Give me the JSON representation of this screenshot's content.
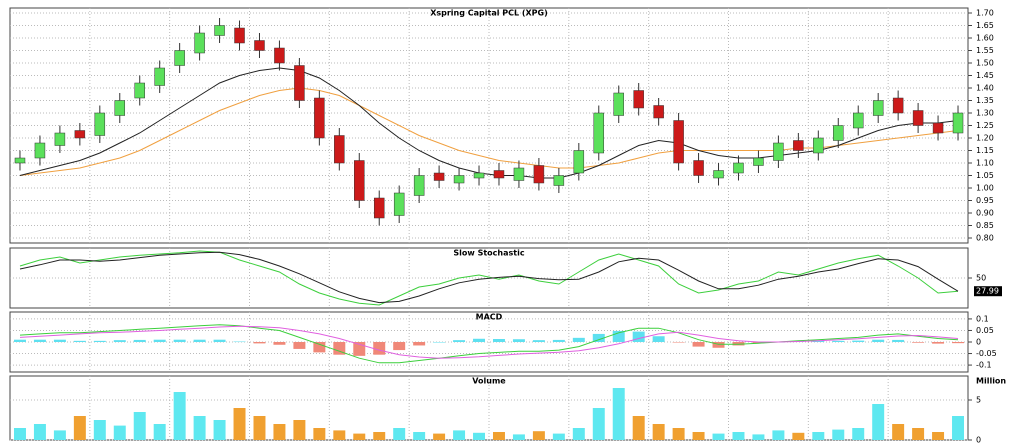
{
  "chart_data": [
    {
      "type": "candlestick",
      "title": "Xspring Capital PCL (XPG)",
      "grid": true,
      "up_color": "#5be05b",
      "down_color": "#cc1a1a",
      "open": [
        1.1,
        1.12,
        1.17,
        1.23,
        1.21,
        1.29,
        1.36,
        1.41,
        1.49,
        1.54,
        1.61,
        1.64,
        1.59,
        1.56,
        1.49,
        1.36,
        1.21,
        1.11,
        0.96,
        0.89,
        0.97,
        1.06,
        1.02,
        1.04,
        1.07,
        1.03,
        1.09,
        1.01,
        1.06,
        1.14,
        1.29,
        1.39,
        1.33,
        1.27,
        1.11,
        1.04,
        1.06,
        1.09,
        1.11,
        1.19,
        1.14,
        1.19,
        1.24,
        1.29,
        1.36,
        1.31,
        1.26,
        1.22
      ],
      "high": [
        1.15,
        1.21,
        1.25,
        1.26,
        1.33,
        1.38,
        1.45,
        1.51,
        1.58,
        1.65,
        1.68,
        1.67,
        1.62,
        1.59,
        1.52,
        1.39,
        1.24,
        1.14,
        0.99,
        1.01,
        1.08,
        1.09,
        1.08,
        1.09,
        1.1,
        1.11,
        1.12,
        1.08,
        1.18,
        1.33,
        1.41,
        1.42,
        1.36,
        1.3,
        1.14,
        1.1,
        1.13,
        1.15,
        1.21,
        1.22,
        1.23,
        1.28,
        1.33,
        1.38,
        1.39,
        1.34,
        1.29,
        1.33
      ],
      "low": [
        1.07,
        1.09,
        1.14,
        1.17,
        1.18,
        1.26,
        1.33,
        1.38,
        1.46,
        1.51,
        1.58,
        1.55,
        1.52,
        1.47,
        1.32,
        1.17,
        1.07,
        0.92,
        0.85,
        0.86,
        0.94,
        1.0,
        0.99,
        1.01,
        1.01,
        1.0,
        0.99,
        0.98,
        1.03,
        1.11,
        1.26,
        1.29,
        1.25,
        1.07,
        1.02,
        1.01,
        1.03,
        1.06,
        1.08,
        1.12,
        1.11,
        1.16,
        1.21,
        1.26,
        1.27,
        1.22,
        1.19,
        1.19
      ],
      "close": [
        1.12,
        1.18,
        1.22,
        1.2,
        1.3,
        1.35,
        1.42,
        1.48,
        1.55,
        1.62,
        1.65,
        1.58,
        1.55,
        1.5,
        1.35,
        1.2,
        1.1,
        0.95,
        0.88,
        0.98,
        1.05,
        1.03,
        1.05,
        1.06,
        1.04,
        1.08,
        1.02,
        1.05,
        1.15,
        1.3,
        1.38,
        1.32,
        1.28,
        1.1,
        1.05,
        1.07,
        1.1,
        1.12,
        1.18,
        1.15,
        1.2,
        1.25,
        1.3,
        1.35,
        1.3,
        1.25,
        1.22,
        1.3
      ],
      "overlays": [
        {
          "color": "#f0a040",
          "values": [
            1.05,
            1.06,
            1.07,
            1.08,
            1.1,
            1.12,
            1.15,
            1.19,
            1.23,
            1.27,
            1.31,
            1.34,
            1.37,
            1.39,
            1.4,
            1.39,
            1.37,
            1.33,
            1.29,
            1.25,
            1.21,
            1.18,
            1.15,
            1.13,
            1.11,
            1.1,
            1.09,
            1.08,
            1.08,
            1.09,
            1.1,
            1.12,
            1.14,
            1.15,
            1.15,
            1.15,
            1.15,
            1.15,
            1.15,
            1.16,
            1.16,
            1.17,
            1.18,
            1.19,
            1.2,
            1.21,
            1.22,
            1.23
          ]
        },
        {
          "color": "#222222",
          "values": [
            1.05,
            1.07,
            1.09,
            1.11,
            1.14,
            1.18,
            1.22,
            1.27,
            1.32,
            1.37,
            1.42,
            1.45,
            1.47,
            1.48,
            1.47,
            1.44,
            1.39,
            1.33,
            1.26,
            1.2,
            1.15,
            1.11,
            1.08,
            1.06,
            1.05,
            1.05,
            1.04,
            1.04,
            1.06,
            1.09,
            1.13,
            1.17,
            1.19,
            1.18,
            1.15,
            1.13,
            1.12,
            1.12,
            1.13,
            1.14,
            1.15,
            1.17,
            1.2,
            1.23,
            1.25,
            1.26,
            1.26,
            1.27
          ]
        }
      ],
      "ylim": [
        0.78,
        1.72
      ],
      "yticks": [
        {
          "value": 0.8,
          "label": "0.80"
        },
        0.85,
        {
          "value": 0.9,
          "label": "0.90"
        },
        0.95,
        {
          "value": 1.0,
          "label": "1.00"
        },
        1.05,
        {
          "value": 1.1,
          "label": "1.10"
        },
        1.15,
        {
          "value": 1.2,
          "label": "1.20"
        },
        1.25,
        {
          "value": 1.3,
          "label": "1.30"
        },
        1.35,
        {
          "value": 1.4,
          "label": "1.40"
        },
        1.45,
        {
          "value": 1.5,
          "label": "1.50"
        },
        1.55,
        {
          "value": 1.6,
          "label": "1.60"
        },
        1.65,
        {
          "value": 1.7,
          "label": "1.70"
        }
      ]
    },
    {
      "type": "line",
      "title": "Slow Stochastic",
      "grid": true,
      "series": [
        {
          "color": "#3ccf3c",
          "values": [
            70,
            80,
            85,
            75,
            80,
            85,
            88,
            90,
            92,
            95,
            93,
            80,
            70,
            60,
            40,
            25,
            15,
            8,
            5,
            20,
            35,
            40,
            50,
            55,
            48,
            55,
            45,
            40,
            60,
            80,
            90,
            80,
            70,
            40,
            25,
            30,
            40,
            45,
            60,
            55,
            65,
            75,
            82,
            88,
            70,
            50,
            25,
            28
          ]
        },
        {
          "color": "#222222",
          "values": [
            65,
            72,
            80,
            80,
            78,
            80,
            84,
            88,
            90,
            92,
            93,
            89,
            81,
            70,
            57,
            42,
            27,
            16,
            9,
            11,
            20,
            32,
            42,
            48,
            51,
            53,
            49,
            47,
            48,
            60,
            77,
            83,
            80,
            63,
            45,
            32,
            32,
            38,
            48,
            53,
            60,
            65,
            74,
            82,
            80,
            69,
            48,
            27.99
          ]
        }
      ],
      "ylim": [
        0,
        100
      ],
      "yticks": [
        50
      ]
    },
    {
      "type": "combo",
      "title": "MACD",
      "grid": true,
      "series": [
        {
          "color": "#3ccf3c",
          "values": [
            0.03,
            0.035,
            0.04,
            0.04,
            0.045,
            0.05,
            0.055,
            0.06,
            0.065,
            0.07,
            0.075,
            0.07,
            0.06,
            0.05,
            0.02,
            -0.01,
            -0.04,
            -0.07,
            -0.09,
            -0.09,
            -0.08,
            -0.07,
            -0.06,
            -0.05,
            -0.045,
            -0.04,
            -0.04,
            -0.035,
            -0.02,
            0.01,
            0.04,
            0.06,
            0.06,
            0.04,
            0.01,
            -0.01,
            -0.01,
            -0.005,
            0,
            0.005,
            0.01,
            0.015,
            0.02,
            0.03,
            0.035,
            0.025,
            0.015,
            0.01
          ]
        },
        {
          "color": "#e060e0",
          "values": [
            0.02,
            0.025,
            0.03,
            0.035,
            0.04,
            0.042,
            0.046,
            0.05,
            0.055,
            0.06,
            0.065,
            0.068,
            0.066,
            0.062,
            0.05,
            0.035,
            0.015,
            -0.01,
            -0.035,
            -0.055,
            -0.065,
            -0.07,
            -0.068,
            -0.064,
            -0.058,
            -0.052,
            -0.048,
            -0.044,
            -0.038,
            -0.025,
            -0.008,
            0.015,
            0.035,
            0.042,
            0.03,
            0.015,
            0.005,
            0,
            0,
            0.002,
            0.005,
            0.01,
            0.014,
            0.02,
            0.026,
            0.028,
            0.022,
            0.015
          ]
        }
      ],
      "histogram": {
        "up_color": "#5ee0f0",
        "down_color": "#f08878",
        "values": [
          0.01,
          0.01,
          0.01,
          0.005,
          0.005,
          0.008,
          0.009,
          0.01,
          0.01,
          0.01,
          0.01,
          0.002,
          -0.006,
          -0.012,
          -0.03,
          -0.045,
          -0.055,
          -0.06,
          -0.055,
          -0.035,
          -0.015,
          0,
          0.008,
          0.014,
          0.013,
          0.012,
          0.008,
          0.009,
          0.018,
          0.035,
          0.048,
          0.045,
          0.025,
          -0.002,
          -0.02,
          -0.025,
          -0.015,
          -0.005,
          0,
          0.003,
          0.005,
          0.005,
          0.006,
          0.01,
          0.009,
          -0.003,
          -0.007,
          -0.005
        ]
      },
      "ylim": [
        -0.13,
        0.13
      ],
      "yticks": [
        0.1,
        0.05,
        0,
        -0.05,
        -0.1
      ]
    },
    {
      "type": "bar",
      "title": "Volume",
      "y_label": "Million",
      "grid": true,
      "up_color": "#5ee8f0",
      "down_color": "#f0a030",
      "values": [
        1.5,
        2,
        1.2,
        3,
        2.5,
        1.8,
        3.5,
        2,
        6,
        3,
        2.5,
        4,
        3,
        2,
        2.5,
        1.5,
        1.2,
        0.8,
        1,
        1.5,
        1,
        0.8,
        1.2,
        0.9,
        1,
        0.7,
        1.1,
        0.8,
        1.5,
        4,
        6.5,
        3,
        2,
        1.5,
        1,
        0.8,
        1,
        0.7,
        1.2,
        0.9,
        1,
        1.3,
        1.5,
        4.5,
        2,
        1.5,
        1,
        3
      ],
      "ylim": [
        0,
        8
      ],
      "yticks": [
        0,
        5
      ]
    }
  ]
}
